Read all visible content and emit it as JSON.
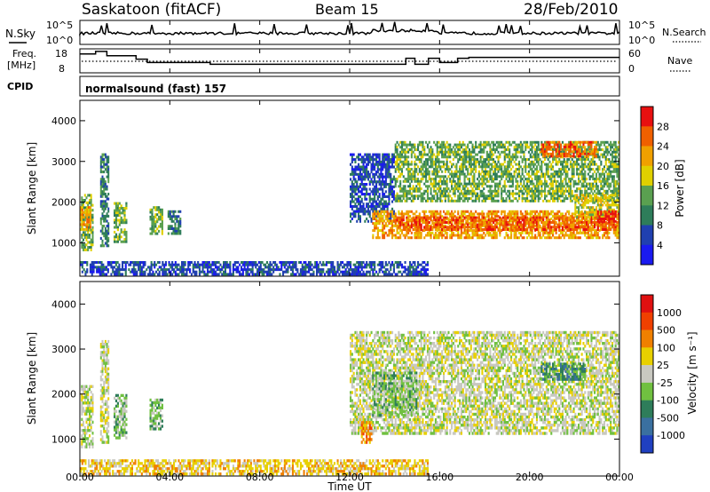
{
  "header": {
    "title": "Saskatoon (fitACF)",
    "beam": "Beam 15",
    "date": "28/Feb/2010"
  },
  "panels": {
    "nsky": {
      "label": "N.Sky",
      "ticks_left": [
        "10^5",
        "10^0"
      ],
      "label_right": "N.Search",
      "ticks_right": [
        "10^5",
        "10^0"
      ]
    },
    "freq": {
      "label_line1": "Freq.",
      "label_line2": "[MHz]",
      "ticks_left": [
        "18",
        "8"
      ],
      "ticks_right": [
        "60",
        "0"
      ],
      "label_right": "Nave"
    },
    "cpid": {
      "label": "CPID",
      "value": "normalsound (fast) 157"
    }
  },
  "power_panel": {
    "ylabel": "Slant Range [km]",
    "yticks": [
      "1000",
      "2000",
      "3000",
      "4000"
    ],
    "cbar_label": "Power [dB]",
    "cbar_ticks": [
      "4",
      "8",
      "12",
      "16",
      "20",
      "24",
      "28"
    ],
    "cbar_colors": [
      "#1a1af0",
      "#2040b0",
      "#2e7d5a",
      "#5aa050",
      "#e0d000",
      "#f0a000",
      "#f06000",
      "#e81010"
    ]
  },
  "velocity_panel": {
    "ylabel": "Slant Range [km]",
    "yticks": [
      "1000",
      "2000",
      "3000",
      "4000"
    ],
    "cbar_label": "Velocity [m s⁻¹]",
    "cbar_ticks": [
      "1000",
      "500",
      "100",
      "25",
      "-25",
      "-100",
      "-500",
      "-1000"
    ],
    "cbar_colors": [
      "#2040c0",
      "#3a70a0",
      "#2e7d5a",
      "#70c040",
      "#c8c8c0",
      "#e8d000",
      "#f08000",
      "#f04000",
      "#e01010"
    ]
  },
  "time_axis": {
    "xlabel": "Time UT",
    "ticks": [
      "00:00",
      "04:00",
      "08:00",
      "12:00",
      "16:00",
      "20:00",
      "00:00"
    ]
  },
  "chart_data": {
    "type": "heatmap",
    "x_range_hours": [
      0,
      24
    ],
    "y_range_km": [
      180,
      4500
    ],
    "freq_mhz": [
      {
        "start": 0,
        "end": 0.7,
        "value": 17
      },
      {
        "start": 0.7,
        "end": 1.2,
        "value": 18.5
      },
      {
        "start": 1.2,
        "end": 2.5,
        "value": 16
      },
      {
        "start": 2.5,
        "end": 3.0,
        "value": 14
      },
      {
        "start": 3.0,
        "end": 5.8,
        "value": 12
      },
      {
        "start": 5.8,
        "end": 14.5,
        "value": 11
      },
      {
        "start": 14.5,
        "end": 14.9,
        "value": 14.5
      },
      {
        "start": 14.9,
        "end": 15.5,
        "value": 11
      },
      {
        "start": 15.5,
        "end": 16.0,
        "value": 14.5
      },
      {
        "start": 16.0,
        "end": 16.8,
        "value": 12
      },
      {
        "start": 16.8,
        "end": 17.3,
        "value": 14.5
      },
      {
        "start": 17.3,
        "end": 24,
        "value": 15
      }
    ],
    "power_regions": [
      {
        "t0": 0.05,
        "t1": 0.6,
        "r0": 800,
        "r1": 2200,
        "level": 3
      },
      {
        "t0": 0.0,
        "t1": 0.5,
        "r0": 1300,
        "r1": 1900,
        "level": 5
      },
      {
        "t0": 0.9,
        "t1": 1.3,
        "r0": 900,
        "r1": 3200,
        "level": 2
      },
      {
        "t0": 1.5,
        "t1": 2.1,
        "r0": 1000,
        "r1": 2000,
        "level": 3
      },
      {
        "t0": 3.1,
        "t1": 3.7,
        "r0": 1200,
        "r1": 1900,
        "level": 3
      },
      {
        "t0": 3.9,
        "t1": 4.5,
        "r0": 1200,
        "r1": 1800,
        "level": 2
      },
      {
        "t0": 0.0,
        "t1": 15.5,
        "r0": 200,
        "r1": 550,
        "level": 1
      },
      {
        "t0": 12.0,
        "t1": 14.0,
        "r0": 1500,
        "r1": 3200,
        "level": 1
      },
      {
        "t0": 13.0,
        "t1": 24.0,
        "r0": 1100,
        "r1": 1800,
        "level": 5
      },
      {
        "t0": 14.0,
        "t1": 24.0,
        "r0": 1300,
        "r1": 1650,
        "level": 6
      },
      {
        "t0": 14.0,
        "t1": 24.0,
        "r0": 2000,
        "r1": 3500,
        "level": 3
      },
      {
        "t0": 20.5,
        "t1": 23.0,
        "r0": 3100,
        "r1": 3500,
        "level": 6
      },
      {
        "t0": 22.0,
        "t1": 24.0,
        "r0": 1600,
        "r1": 2200,
        "level": 4
      },
      {
        "t0": 23.0,
        "t1": 24.0,
        "r0": 1500,
        "r1": 1800,
        "level": 7
      }
    ],
    "velocity_regions": [
      {
        "t0": 0.05,
        "t1": 0.6,
        "r0": 800,
        "r1": 2200,
        "level": 4
      },
      {
        "t0": 0.9,
        "t1": 1.3,
        "r0": 900,
        "r1": 3200,
        "level": 4
      },
      {
        "t0": 1.5,
        "t1": 2.1,
        "r0": 1000,
        "r1": 2000,
        "level": 3
      },
      {
        "t0": 3.1,
        "t1": 3.7,
        "r0": 1200,
        "r1": 1900,
        "level": 3
      },
      {
        "t0": 0.0,
        "t1": 15.5,
        "r0": 200,
        "r1": 550,
        "level": 5
      },
      {
        "t0": 12.0,
        "t1": 24.0,
        "r0": 1100,
        "r1": 3400,
        "level": 4
      },
      {
        "t0": 12.5,
        "t1": 13.0,
        "r0": 900,
        "r1": 1400,
        "level": 6
      },
      {
        "t0": 20.5,
        "t1": 22.5,
        "r0": 2300,
        "r1": 2700,
        "level": 2
      },
      {
        "t0": 13.0,
        "t1": 15.0,
        "r0": 1500,
        "r1": 2500,
        "level": 3
      }
    ]
  }
}
